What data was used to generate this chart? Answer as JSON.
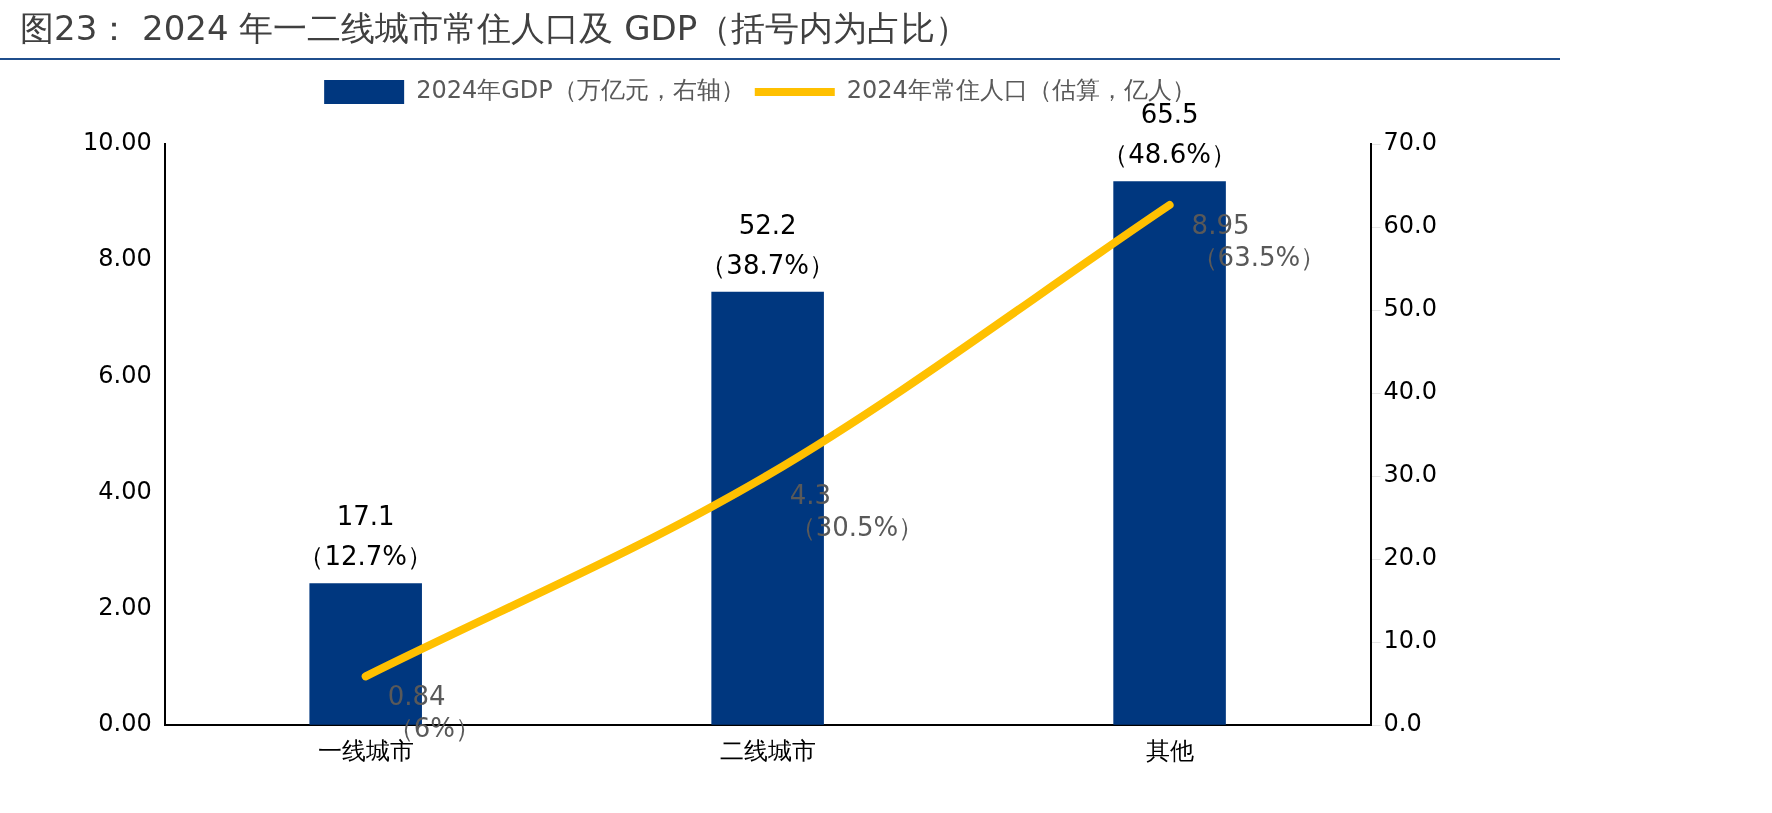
{
  "chart_data": {
    "type": "bar",
    "title": "图23：   2024 年一二线城市常住人口及 GDP（括号内为占比）",
    "categories": [
      "一线城市",
      "二线城市",
      "其他"
    ],
    "series": [
      {
        "name": "2024年GDP（万亿元，右轴）",
        "axis": "y2",
        "color": "#00377f",
        "values": [
          17.1,
          52.2,
          65.5
        ],
        "value_labels": [
          "17.1\n（12.7%）",
          "52.2\n（38.7%）",
          "65.5\n（48.6%）"
        ]
      },
      {
        "name": "2024年常住人口（估算，亿人）",
        "type": "line",
        "axis": "y",
        "color": "#ffc000",
        "values": [
          0.84,
          4.3,
          8.95
        ],
        "value_labels": [
          "0.84\n（6%）",
          "4.3\n（30.5%）",
          "8.95\n（63.5%）"
        ]
      }
    ],
    "ylim": [
      0,
      10
    ],
    "yticks": [
      {
        "value": 0,
        "label": "0.00"
      },
      {
        "value": 2,
        "label": "2.00"
      },
      {
        "value": 4,
        "label": "4.00"
      },
      {
        "value": 6,
        "label": "6.00"
      },
      {
        "value": 8,
        "label": "8.00"
      },
      {
        "value": 10,
        "label": "10.00"
      }
    ],
    "y2lim": [
      0,
      70
    ],
    "y2ticks": [
      {
        "value": 0,
        "label": "0.0"
      },
      {
        "value": 10,
        "label": "10.0"
      },
      {
        "value": 20,
        "label": "20.0"
      },
      {
        "value": 30,
        "label": "30.0"
      },
      {
        "value": 40,
        "label": "40.0"
      },
      {
        "value": 50,
        "label": "50.0"
      },
      {
        "value": 60,
        "label": "60.0"
      },
      {
        "value": 70,
        "label": "70.0"
      }
    ],
    "grid": false,
    "legend": "top"
  }
}
